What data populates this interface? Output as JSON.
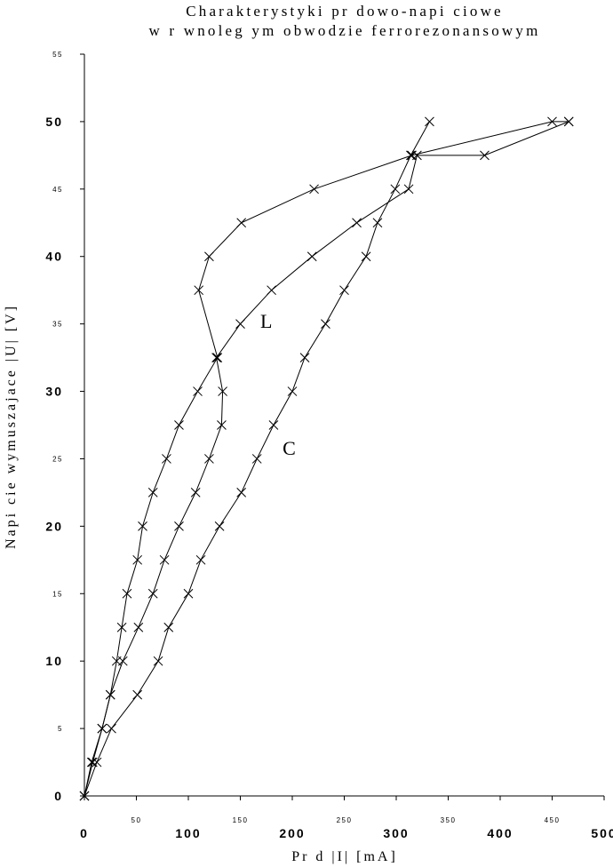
{
  "chart_data": {
    "type": "line",
    "title": [
      "Charakterystyki pr dowo-napi ciowe",
      "w r wnoleg ym obwodzie ferrorezonansowym"
    ],
    "xlabel": "Pr d |I| [mA]",
    "ylabel": "Napi cie wymuszajace |U| [V]",
    "xlim": [
      0,
      500
    ],
    "ylim": [
      0,
      55
    ],
    "xticks": [
      {
        "value": 0,
        "label": "0"
      },
      {
        "value": 50,
        "label": "50"
      },
      {
        "value": 100,
        "label": "100"
      },
      {
        "value": 150,
        "label": "150"
      },
      {
        "value": 200,
        "label": "200"
      },
      {
        "value": 250,
        "label": "250"
      },
      {
        "value": 300,
        "label": "300"
      },
      {
        "value": 350,
        "label": "350"
      },
      {
        "value": 400,
        "label": "400"
      },
      {
        "value": 450,
        "label": "450"
      },
      {
        "value": 500,
        "label": "500"
      }
    ],
    "yticks": [
      {
        "value": 0,
        "label": "0"
      },
      {
        "value": 5,
        "label": "5"
      },
      {
        "value": 10,
        "label": "10"
      },
      {
        "value": 15,
        "label": "15"
      },
      {
        "value": 20,
        "label": "20"
      },
      {
        "value": 25,
        "label": "25"
      },
      {
        "value": 30,
        "label": "30"
      },
      {
        "value": 35,
        "label": "35"
      },
      {
        "value": 40,
        "label": "40"
      },
      {
        "value": 45,
        "label": "45"
      },
      {
        "value": 50,
        "label": "50"
      },
      {
        "value": 55,
        "label": "55"
      }
    ],
    "grid": false,
    "series": [
      {
        "name": "",
        "marker": "x",
        "x": [
          0,
          8,
          17,
          25,
          31,
          36,
          41,
          51,
          56,
          66,
          79,
          91,
          109,
          128,
          110,
          120,
          151,
          221,
          315,
          450,
          466
        ],
        "y": [
          0,
          2.5,
          5,
          7.5,
          10,
          12.5,
          15,
          17.5,
          20,
          22.5,
          25,
          27.5,
          30,
          32.5,
          37.5,
          40,
          42.5,
          45,
          47.5,
          50,
          50
        ]
      },
      {
        "name": "L",
        "marker": "x",
        "x": [
          0,
          7,
          17,
          25,
          37,
          52,
          66,
          77,
          91,
          107,
          120,
          132,
          133,
          127,
          150,
          180,
          219,
          262,
          312,
          320,
          385,
          466
        ],
        "y": [
          0,
          2.5,
          5,
          7.5,
          10,
          12.5,
          15,
          17.5,
          20,
          22.5,
          25,
          27.5,
          30,
          32.5,
          35,
          37.5,
          40,
          42.5,
          45,
          47.5,
          47.5,
          50
        ]
      },
      {
        "name": "C",
        "marker": "x",
        "x": [
          0,
          12,
          26,
          51,
          71,
          81,
          100,
          112,
          130,
          151,
          166,
          182,
          200,
          212,
          232,
          250,
          271,
          282,
          299,
          314,
          332
        ],
        "y": [
          0,
          2.5,
          5,
          7.5,
          10,
          12.5,
          15,
          17.5,
          20,
          22.5,
          25,
          27.5,
          30,
          32.5,
          35,
          37.5,
          40,
          42.5,
          45,
          47.5,
          50
        ]
      }
    ],
    "annotations": [
      {
        "text": "L",
        "x": 175,
        "y": 34.7
      },
      {
        "text": "C",
        "x": 197,
        "y": 25.3
      }
    ]
  }
}
